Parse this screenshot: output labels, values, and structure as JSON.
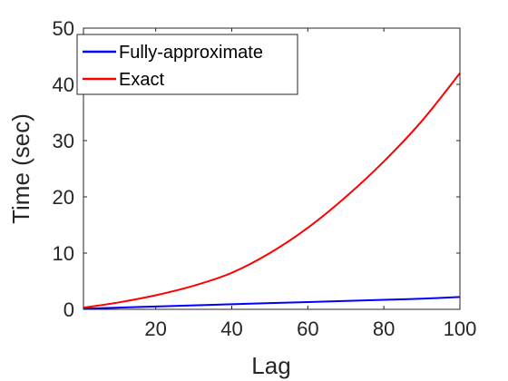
{
  "chart_data": {
    "type": "line",
    "title": "",
    "xlabel": "Lag",
    "ylabel": "Time (sec)",
    "xlim": [
      1,
      100
    ],
    "ylim": [
      0,
      50
    ],
    "xticks": [
      20,
      40,
      60,
      80,
      100
    ],
    "yticks": [
      0,
      10,
      20,
      30,
      40,
      50
    ],
    "grid": false,
    "legend_position": "top-left",
    "series": [
      {
        "name": "Fully-approximate",
        "color": "#0000ff",
        "x": [
          1,
          10,
          20,
          30,
          40,
          50,
          60,
          70,
          80,
          90,
          100
        ],
        "y": [
          0.1,
          0.3,
          0.5,
          0.7,
          0.9,
          1.1,
          1.3,
          1.5,
          1.7,
          1.9,
          2.2
        ]
      },
      {
        "name": "Exact",
        "color": "#ff0000",
        "x": [
          1,
          10,
          20,
          30,
          40,
          50,
          60,
          70,
          80,
          90,
          100
        ],
        "y": [
          0.3,
          1.2,
          2.5,
          4.2,
          6.5,
          10.0,
          14.5,
          20.0,
          26.3,
          33.5,
          42.0
        ]
      }
    ]
  }
}
